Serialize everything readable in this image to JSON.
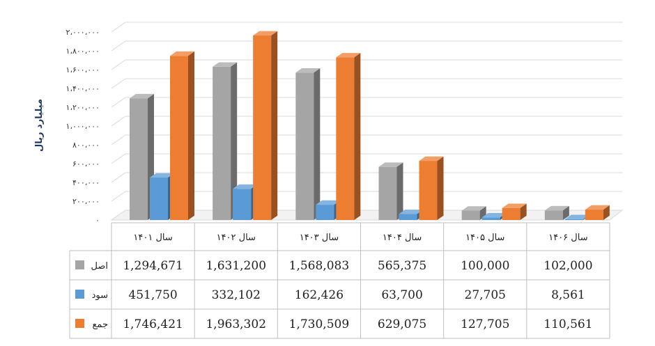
{
  "chart_data": {
    "type": "bar",
    "ylabel": "میلیارد ریال",
    "ylim": [
      0,
      2000000
    ],
    "yticks": [
      "۰",
      "۲۰۰،۰۰۰",
      "۴۰۰،۰۰۰",
      "۶۰۰،۰۰۰",
      "۸۰۰،۰۰۰",
      "۱،۰۰۰،۰۰۰",
      "۱،۲۰۰،۰۰۰",
      "۱،۴۰۰،۰۰۰",
      "۱،۶۰۰،۰۰۰",
      "۱،۸۰۰،۰۰۰",
      "۲،۰۰۰،۰۰۰"
    ],
    "grid": true,
    "legend": "data-table",
    "categories": [
      "سال ۱۴۰۱",
      "سال ۱۴۰۲",
      "سال ۱۴۰۳",
      "سال ۱۴۰۴",
      "سال ۱۴۰۵",
      "سال ۱۴۰۶"
    ],
    "series": [
      {
        "name": "اصل",
        "color": "#a5a5a5",
        "values": [
          1294671,
          1631200,
          1568083,
          565375,
          100000,
          102000
        ],
        "labels": [
          "1,294,671",
          "1,631,200",
          "1,568,083",
          "565,375",
          "100,000",
          "102,000"
        ]
      },
      {
        "name": "سود",
        "color": "#5b9bd5",
        "values": [
          451750,
          332102,
          162426,
          63700,
          27705,
          8561
        ],
        "labels": [
          "451,750",
          "332,102",
          "162,426",
          "63,700",
          "27,705",
          "8,561"
        ]
      },
      {
        "name": "جمع",
        "color": "#ed7d31",
        "values": [
          1746421,
          1963302,
          1730509,
          629075,
          127705,
          110561
        ],
        "labels": [
          "1,746,421",
          "1,963,302",
          "1,730,509",
          "629,075",
          "127,705",
          "110,561"
        ]
      }
    ]
  }
}
